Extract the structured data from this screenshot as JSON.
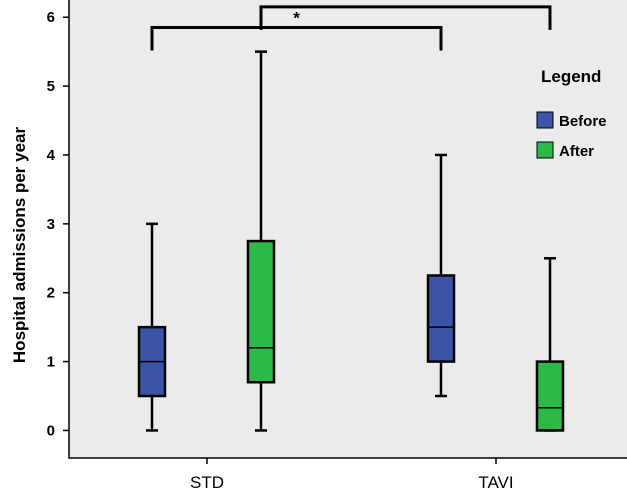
{
  "chart_data": {
    "type": "boxplot",
    "ylabel": "Hospital admissions per year",
    "ylim": [
      -0.4,
      6.25
    ],
    "yticks": [
      0,
      1,
      2,
      3,
      4,
      5,
      6
    ],
    "categories": [
      "STD",
      "TAVI"
    ],
    "grid": false,
    "legend": {
      "title": "Legend",
      "placement": "top-right",
      "entries": [
        "Before",
        "After"
      ]
    },
    "series": [
      {
        "name": "Before",
        "color": "#3a55a8",
        "boxes": [
          {
            "category": "STD",
            "min": 0,
            "q1": 0.5,
            "median": 1.0,
            "q3": 1.5,
            "max": 3.0
          },
          {
            "category": "TAVI",
            "min": 0.5,
            "q1": 1.0,
            "median": 1.5,
            "q3": 2.25,
            "max": 4.0
          }
        ]
      },
      {
        "name": "After",
        "color": "#2db84a",
        "boxes": [
          {
            "category": "STD",
            "min": 0,
            "q1": 0.7,
            "median": 1.2,
            "q3": 2.75,
            "max": 5.5
          },
          {
            "category": "TAVI",
            "min": 0,
            "q1": 0,
            "median": 0.33,
            "q3": 1.0,
            "max": 2.5
          }
        ]
      }
    ],
    "annotations": [
      {
        "label": "*",
        "from": {
          "category": "STD",
          "series": "Before"
        },
        "to": {
          "category": "TAVI",
          "series": "Before"
        },
        "y": 5.85
      },
      {
        "label": "*",
        "from": {
          "category": "STD",
          "series": "After"
        },
        "to": {
          "category": "TAVI",
          "series": "After"
        },
        "y": 6.15
      }
    ]
  }
}
